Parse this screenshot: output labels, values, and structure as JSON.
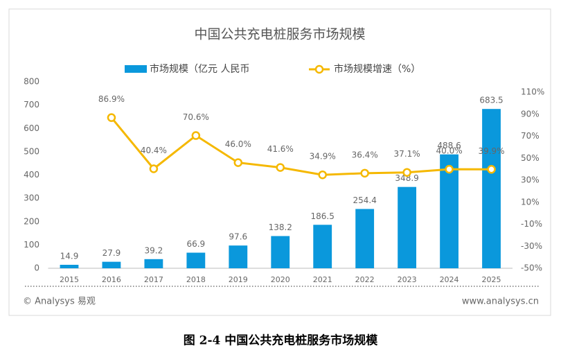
{
  "chart_data": {
    "type": "bar-line",
    "title": "中国公共充电桩服务市场规模",
    "categories": [
      "2015",
      "2016",
      "2017",
      "2018",
      "2019",
      "2020",
      "2021",
      "2022",
      "2023",
      "2024",
      "2025"
    ],
    "series": [
      {
        "name": "市场规模（亿元 人民币",
        "type": "bar",
        "color": "#0a98dc",
        "values": [
          14.9,
          27.9,
          39.2,
          66.9,
          97.6,
          138.2,
          186.5,
          254.4,
          348.9,
          488.6,
          683.5
        ]
      },
      {
        "name": "市场规模增速（%）",
        "type": "line",
        "axis": "y2",
        "color": "#f5b800",
        "values": [
          null,
          86.9,
          40.4,
          70.6,
          46.0,
          41.6,
          34.9,
          36.4,
          37.1,
          40.0,
          39.9
        ],
        "value_labels": [
          null,
          "86.9%",
          "40.4%",
          "70.6%",
          "46.0%",
          "41.6%",
          "34.9%",
          "36.4%",
          "37.1%",
          "40.0%",
          "39.9%"
        ]
      }
    ],
    "ylim": [
      0,
      800
    ],
    "yticks": [
      0,
      100,
      200,
      300,
      400,
      500,
      600,
      700,
      800
    ],
    "y2lim": [
      -50,
      110
    ],
    "y2ticks": [
      {
        "value": -50,
        "label": "-50%"
      },
      {
        "value": -30,
        "label": "-30%"
      },
      {
        "value": -10,
        "label": "-10%"
      },
      {
        "value": 10,
        "label": "10%"
      },
      {
        "value": 30,
        "label": "30%"
      },
      {
        "value": 50,
        "label": "50%"
      },
      {
        "value": 70,
        "label": "70%"
      },
      {
        "value": 90,
        "label": "90%"
      },
      {
        "value": 110,
        "label": "110%"
      }
    ],
    "source": "© Analysys 易观",
    "website": "www.analysys.cn",
    "caption": "图 2-4  中国公共充电桩服务市场规模"
  }
}
